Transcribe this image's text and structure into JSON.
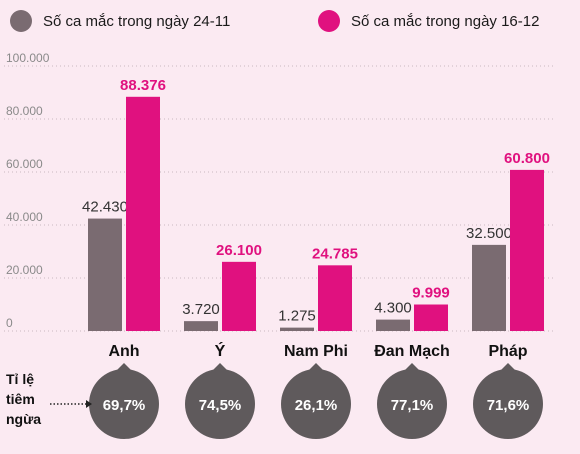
{
  "chart_data": {
    "type": "bar",
    "categories": [
      "Anh",
      "Ý",
      "Nam Phi",
      "Đan Mạch",
      "Pháp"
    ],
    "series": [
      {
        "name": "Số ca mắc trong ngày 24-11",
        "values": [
          42430,
          3720,
          1275,
          4300,
          32500
        ],
        "labels": [
          "42.430",
          "3.720",
          "1.275",
          "4.300",
          "32.500"
        ]
      },
      {
        "name": "Số ca mắc trong ngày 16-12",
        "values": [
          88376,
          26100,
          24785,
          9999,
          60800
        ],
        "labels": [
          "88.376",
          "26.100",
          "24.785",
          "9.999",
          "60.800"
        ]
      }
    ],
    "ylim": [
      0,
      100000
    ],
    "yticks": [
      0,
      20000,
      40000,
      60000,
      80000,
      100000
    ],
    "ytick_labels": [
      "0",
      "20.000",
      "40.000",
      "60.000",
      "80.000",
      "100.000"
    ],
    "grid": true,
    "legend_position": "top",
    "colors": {
      "series1": "#7a6b71",
      "series2": "#e0117f",
      "badge": "#5f5a5c",
      "background": "#fbeaf2"
    },
    "vaccination": {
      "label_lines": [
        "Tỉ lệ",
        "tiêm",
        "ngừa"
      ],
      "rates": [
        "69,7%",
        "74,5%",
        "26,1%",
        "77,1%",
        "71,6%"
      ]
    }
  }
}
